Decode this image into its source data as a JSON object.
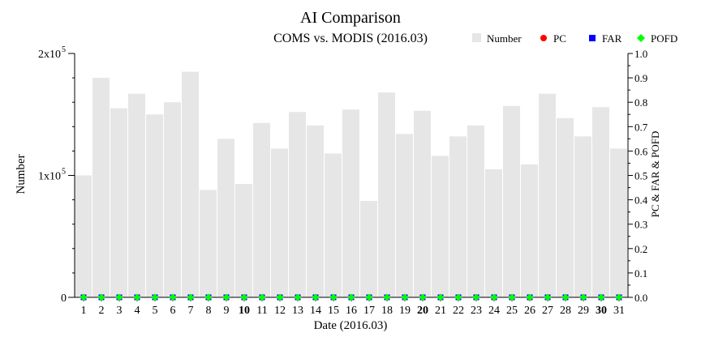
{
  "chart_data": {
    "type": "bar",
    "title": "AI Comparison",
    "subtitle": "COMS vs. MODIS (2016.03)",
    "xlabel": "Date (2016.03)",
    "ylabel_left": "Number",
    "ylabel_right": "PC & FAR & POFD",
    "categories": [
      "1",
      "2",
      "3",
      "4",
      "5",
      "6",
      "7",
      "8",
      "9",
      "10",
      "11",
      "12",
      "13",
      "14",
      "15",
      "16",
      "17",
      "18",
      "19",
      "20",
      "21",
      "22",
      "23",
      "24",
      "25",
      "26",
      "27",
      "28",
      "29",
      "30",
      "31"
    ],
    "bold_categories": [
      "10",
      "20",
      "30"
    ],
    "ylim_left": [
      0,
      200000
    ],
    "ylim_right": [
      0,
      1.0
    ],
    "left_ticks": [
      {
        "value": 0,
        "label": "0",
        "base": "0",
        "exp": ""
      },
      {
        "value": 100000,
        "label": "1x10^5",
        "base": "1x10",
        "exp": "5"
      },
      {
        "value": 200000,
        "label": "2x10^5",
        "base": "2x10",
        "exp": "5"
      }
    ],
    "right_ticks": [
      "0.0",
      "0.1",
      "0.2",
      "0.3",
      "0.4",
      "0.5",
      "0.6",
      "0.7",
      "0.8",
      "0.9",
      "1.0"
    ],
    "legend_placement": "top-right",
    "series": [
      {
        "name": "Number",
        "kind": "bar",
        "axis": "left",
        "color": "#e6e6e6",
        "marker": "square",
        "values": [
          100000,
          180000,
          155000,
          167000,
          150000,
          160000,
          185000,
          88000,
          130000,
          93000,
          143000,
          122000,
          152000,
          141000,
          118000,
          154000,
          79000,
          168000,
          134000,
          153000,
          116000,
          132000,
          141000,
          105000,
          157000,
          109000,
          167000,
          147000,
          132000,
          156000,
          122000
        ]
      },
      {
        "name": "PC",
        "kind": "point",
        "axis": "right",
        "color": "#ff0000",
        "marker": "circle",
        "values": [
          0.0,
          0.0,
          0.0,
          0.0,
          0.0,
          0.0,
          0.0,
          0.0,
          0.0,
          0.0,
          0.0,
          0.0,
          0.0,
          0.0,
          0.0,
          0.0,
          0.0,
          0.0,
          0.0,
          0.0,
          0.0,
          0.0,
          0.0,
          0.0,
          0.0,
          0.0,
          0.0,
          0.0,
          0.0,
          0.0,
          0.0
        ]
      },
      {
        "name": "FAR",
        "kind": "point",
        "axis": "right",
        "color": "#0000ff",
        "marker": "square",
        "values": [
          0.0,
          0.0,
          0.0,
          0.0,
          0.0,
          0.0,
          0.0,
          0.0,
          0.0,
          0.0,
          0.0,
          0.0,
          0.0,
          0.0,
          0.0,
          0.0,
          0.0,
          0.0,
          0.0,
          0.0,
          0.0,
          0.0,
          0.0,
          0.0,
          0.0,
          0.0,
          0.0,
          0.0,
          0.0,
          0.0,
          0.0
        ]
      },
      {
        "name": "POFD",
        "kind": "point",
        "axis": "right",
        "color": "#00ff00",
        "marker": "diamond",
        "values": [
          0.0,
          0.0,
          0.0,
          0.0,
          0.0,
          0.0,
          0.0,
          0.0,
          0.0,
          0.0,
          0.0,
          0.0,
          0.0,
          0.0,
          0.0,
          0.0,
          0.0,
          0.0,
          0.0,
          0.0,
          0.0,
          0.0,
          0.0,
          0.0,
          0.0,
          0.0,
          0.0,
          0.0,
          0.0,
          0.0,
          0.0
        ]
      }
    ],
    "grid": false
  }
}
